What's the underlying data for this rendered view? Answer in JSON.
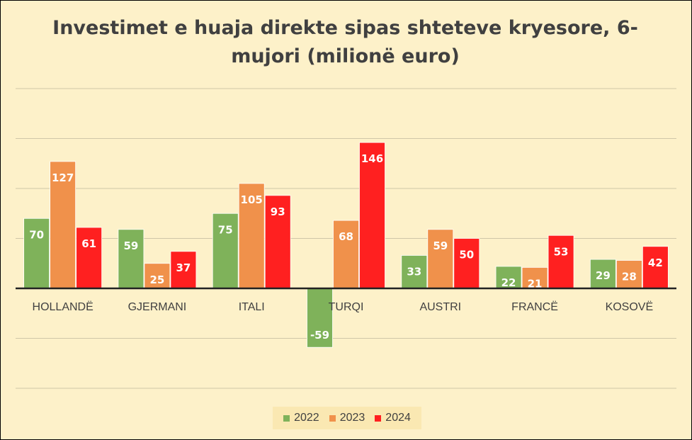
{
  "chart_data": {
    "type": "bar",
    "title": "Investimet e huaja direkte sipas shteteve kryesore, 6-mujori (milionë euro)",
    "categories": [
      "HOLLANDË",
      "GJERMANI",
      "ITALI",
      "TURQI",
      "AUSTRI",
      "FRANCË",
      "KOSOVË"
    ],
    "series": [
      {
        "name": "2022",
        "color": "#7fb25a",
        "values": [
          70,
          59,
          75,
          -59,
          33,
          22,
          29
        ]
      },
      {
        "name": "2023",
        "color": "#f0914b",
        "values": [
          127,
          25,
          105,
          68,
          59,
          21,
          28
        ]
      },
      {
        "name": "2024",
        "color": "#ff2020",
        "values": [
          61,
          37,
          93,
          146,
          50,
          53,
          42
        ]
      }
    ],
    "ylim": [
      -100,
      200
    ],
    "grid": true,
    "legend": "bottom"
  }
}
